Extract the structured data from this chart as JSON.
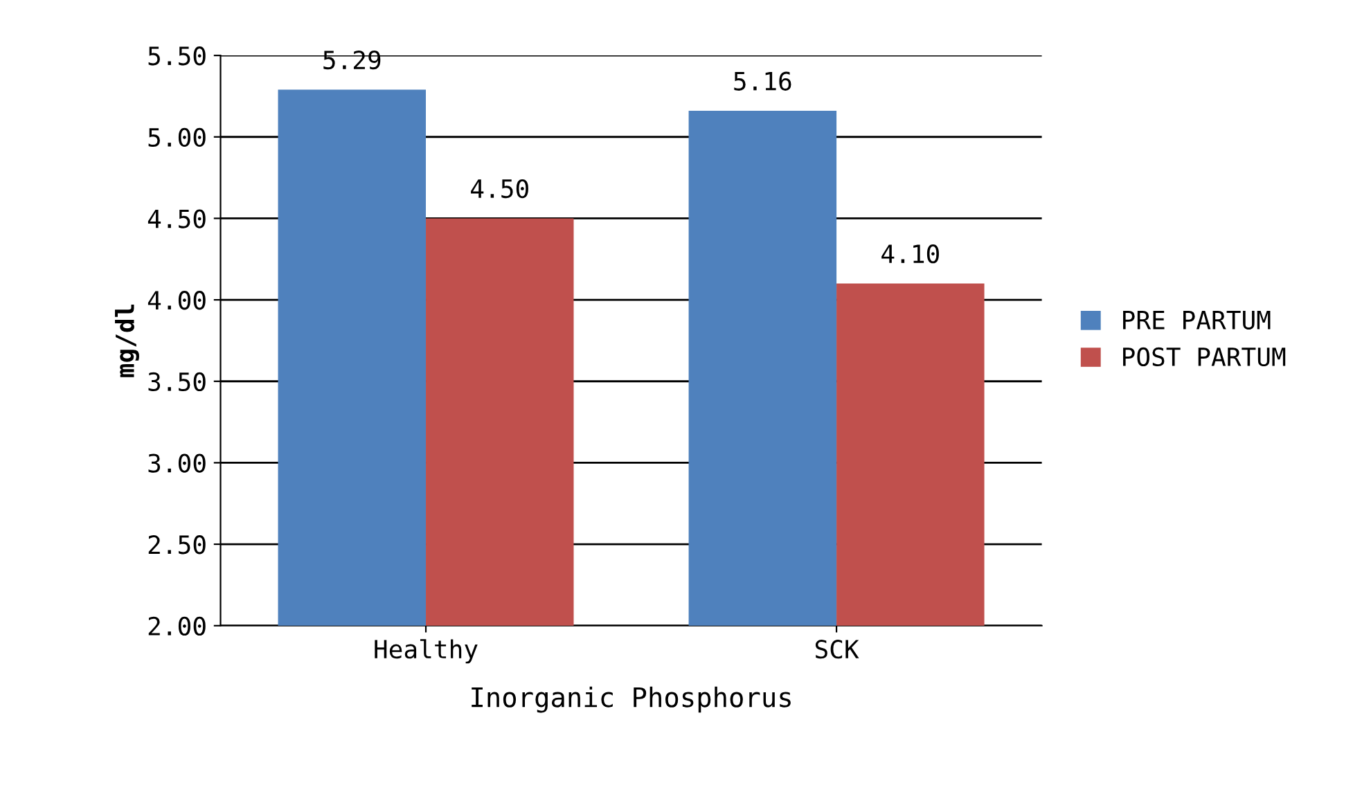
{
  "chart_data": {
    "type": "bar",
    "xlabel": "Inorganic Phosphorus",
    "ylabel": "mg/dl",
    "categories": [
      "Healthy",
      "SCK"
    ],
    "series": [
      {
        "name": "PRE PARTUM",
        "color": "#4f81bd",
        "values": [
          5.29,
          5.16
        ],
        "value_labels": [
          "5.29",
          "5.16"
        ]
      },
      {
        "name": "POST PARTUM",
        "color": "#c0504d",
        "values": [
          4.5,
          4.1
        ],
        "value_labels": [
          "4.50",
          "4.10"
        ]
      }
    ],
    "ylim": [
      2,
      5.5
    ],
    "yticks": [
      {
        "value": 2,
        "label": "2.00"
      },
      {
        "value": 2.5,
        "label": "2.50"
      },
      {
        "value": 3,
        "label": "3.00"
      },
      {
        "value": 3.5,
        "label": "3.50"
      },
      {
        "value": 4,
        "label": "4.00"
      },
      {
        "value": 4.5,
        "label": "4.50"
      },
      {
        "value": 5,
        "label": "5.00"
      },
      {
        "value": 5.5,
        "label": "5.50"
      }
    ],
    "grid": "y",
    "legend": "right"
  }
}
